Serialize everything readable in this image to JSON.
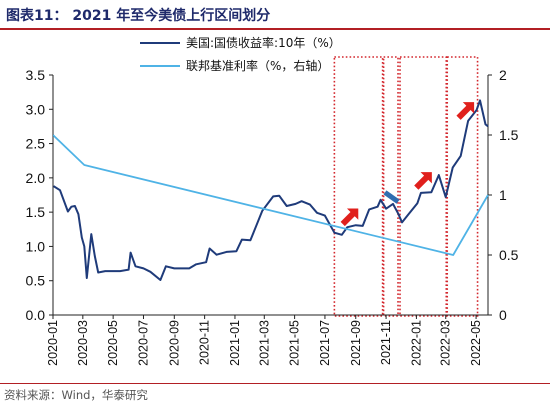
{
  "title": "图表11： 2021 年至今美债上行区间划分",
  "source": "资料来源：Wind，华泰研究",
  "chart_data": {
    "type": "line",
    "legend_position": "top",
    "grid": false,
    "x_ticks": [
      "2020-01",
      "2020-03",
      "2020-05",
      "2020-07",
      "2020-09",
      "2020-11",
      "2021-01",
      "2021-03",
      "2021-05",
      "2021-07",
      "2021-09",
      "2021-11",
      "2022-01",
      "2022-03",
      "2022-05"
    ],
    "x_range": [
      "2020-01-01",
      "2022-05-25"
    ],
    "ylim_left": [
      0,
      3.5
    ],
    "ylim_right": [
      0,
      2
    ],
    "yticks_left": [
      "0.0",
      "0.5",
      "1.0",
      "1.5",
      "2.0",
      "2.5",
      "3.0",
      "3.5"
    ],
    "yticks_right": [
      "0",
      "0.5",
      "1",
      "1.5",
      "2"
    ],
    "series": [
      {
        "name": "美国:国债收益率:10年（%）",
        "axis": "left",
        "color": "#1f3b7a",
        "points": [
          [
            "2020-01-02",
            1.88
          ],
          [
            "2020-01-15",
            1.82
          ],
          [
            "2020-01-31",
            1.51
          ],
          [
            "2020-02-07",
            1.58
          ],
          [
            "2020-02-14",
            1.59
          ],
          [
            "2020-02-21",
            1.47
          ],
          [
            "2020-02-28",
            1.13
          ],
          [
            "2020-03-04",
            1.0
          ],
          [
            "2020-03-09",
            0.54
          ],
          [
            "2020-03-18",
            1.18
          ],
          [
            "2020-03-25",
            0.86
          ],
          [
            "2020-04-01",
            0.62
          ],
          [
            "2020-04-15",
            0.64
          ],
          [
            "2020-05-01",
            0.64
          ],
          [
            "2020-05-15",
            0.64
          ],
          [
            "2020-06-01",
            0.66
          ],
          [
            "2020-06-05",
            0.91
          ],
          [
            "2020-06-15",
            0.71
          ],
          [
            "2020-07-01",
            0.68
          ],
          [
            "2020-07-15",
            0.63
          ],
          [
            "2020-08-04",
            0.51
          ],
          [
            "2020-08-15",
            0.71
          ],
          [
            "2020-09-01",
            0.68
          ],
          [
            "2020-09-15",
            0.68
          ],
          [
            "2020-10-01",
            0.68
          ],
          [
            "2020-10-15",
            0.74
          ],
          [
            "2020-11-04",
            0.77
          ],
          [
            "2020-11-11",
            0.97
          ],
          [
            "2020-11-25",
            0.88
          ],
          [
            "2020-12-15",
            0.92
          ],
          [
            "2021-01-04",
            0.93
          ],
          [
            "2021-01-15",
            1.1
          ],
          [
            "2021-02-01",
            1.09
          ],
          [
            "2021-02-25",
            1.52
          ],
          [
            "2021-03-19",
            1.73
          ],
          [
            "2021-03-31",
            1.74
          ],
          [
            "2021-04-15",
            1.59
          ],
          [
            "2021-05-03",
            1.62
          ],
          [
            "2021-05-15",
            1.66
          ],
          [
            "2021-06-01",
            1.61
          ],
          [
            "2021-06-15",
            1.49
          ],
          [
            "2021-07-01",
            1.45
          ],
          [
            "2021-07-20",
            1.2
          ],
          [
            "2021-08-04",
            1.17
          ],
          [
            "2021-08-15",
            1.28
          ],
          [
            "2021-09-01",
            1.31
          ],
          [
            "2021-09-15",
            1.3
          ],
          [
            "2021-09-28",
            1.54
          ],
          [
            "2021-10-15",
            1.58
          ],
          [
            "2021-10-21",
            1.68
          ],
          [
            "2021-11-01",
            1.55
          ],
          [
            "2021-11-15",
            1.62
          ],
          [
            "2021-11-26",
            1.47
          ],
          [
            "2021-12-03",
            1.35
          ],
          [
            "2021-12-15",
            1.46
          ],
          [
            "2022-01-03",
            1.63
          ],
          [
            "2022-01-10",
            1.78
          ],
          [
            "2022-01-31",
            1.79
          ],
          [
            "2022-02-15",
            2.04
          ],
          [
            "2022-03-01",
            1.72
          ],
          [
            "2022-03-15",
            2.15
          ],
          [
            "2022-03-31",
            2.32
          ],
          [
            "2022-04-15",
            2.83
          ],
          [
            "2022-05-02",
            2.99
          ],
          [
            "2022-05-09",
            3.13
          ],
          [
            "2022-05-20",
            2.78
          ],
          [
            "2022-05-25",
            2.75
          ]
        ]
      },
      {
        "name": "联邦基准利率（%，右轴）",
        "axis": "right",
        "color": "#4fb3e6",
        "points": [
          [
            "2020-01-01",
            1.5
          ],
          [
            "2020-03-04",
            1.25
          ],
          [
            "2022-03-16",
            0.5
          ],
          [
            "2022-05-25",
            1.0
          ]
        ]
      }
    ],
    "highlight_periods": [
      [
        "2021-07-20",
        "2021-10-25"
      ],
      [
        "2021-10-27",
        "2021-11-25"
      ],
      [
        "2021-11-29",
        "2022-03-02"
      ],
      [
        "2022-03-04",
        "2022-05-04"
      ]
    ],
    "annotations": [
      {
        "type": "arrow",
        "direction": "up",
        "color": "#e0201c",
        "x": "2021-08-20",
        "y": 1.43
      },
      {
        "type": "arrow",
        "direction": "down",
        "color": "#2f6db0",
        "x": "2021-11-12",
        "y": 1.72
      },
      {
        "type": "arrow",
        "direction": "up",
        "color": "#e0201c",
        "x": "2022-01-15",
        "y": 1.96
      },
      {
        "type": "arrow",
        "direction": "up",
        "color": "#e0201c",
        "x": "2022-04-10",
        "y": 2.98
      }
    ]
  }
}
